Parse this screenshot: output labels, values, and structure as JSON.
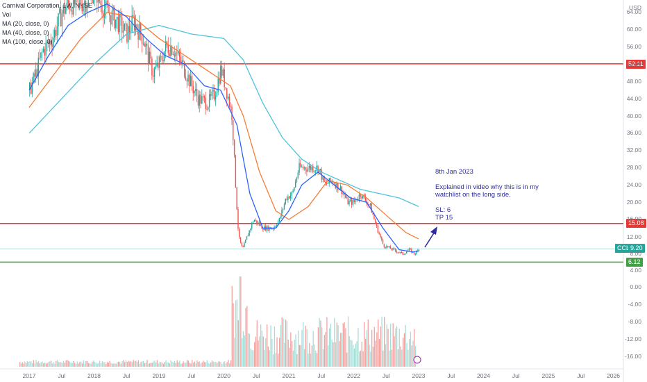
{
  "legend": {
    "title": "Carnival Corporation, 1W, NYSE",
    "vol": "Vol",
    "ma20": "MA (20, close, 0)",
    "ma40": "MA (40, close, 0)",
    "ma100": "MA (100, close, 0)"
  },
  "currency": "USD",
  "annotation": {
    "date": "8th Jan 2023",
    "line1": "Explained in video why this is in my",
    "line2": "watchlist on the long side.",
    "sl": "SL: 6",
    "tp": "TP 15"
  },
  "price_tags": {
    "resistance": "52.11",
    "target": "15.08",
    "current_symbol": "CCL",
    "current": "9.20",
    "support": "6.12"
  },
  "colors": {
    "up": "#26a69a",
    "down": "#ef5350",
    "ma20": "#2962ff",
    "ma40": "#f57c37",
    "ma100": "#4fc3dc",
    "resistance": "#e53935",
    "support": "#43a047",
    "annotation": "#2c2c9e"
  },
  "y_axis_labels": [
    "64.00",
    "60.00",
    "56.00",
    "52.00",
    "48.00",
    "44.00",
    "40.00",
    "36.00",
    "32.00",
    "28.00",
    "24.00",
    "20.00",
    "16.00",
    "12.00",
    "8.00",
    "4.00",
    "0.00",
    "-4.00",
    "-8.00",
    "-12.00",
    "-16.00"
  ],
  "x_axis_labels": [
    "2017",
    "Jul",
    "2018",
    "Jul",
    "2019",
    "Jul",
    "2020",
    "Jul",
    "2021",
    "Jul",
    "2022",
    "Jul",
    "2023",
    "Jul",
    "2024",
    "Jul",
    "2025",
    "Jul",
    "2026"
  ],
  "chart_data": {
    "type": "candlestick",
    "symbol": "CCL",
    "timeframe": "1W",
    "exchange": "NYSE",
    "price_range": [
      4,
      66
    ],
    "horizontal_levels": [
      {
        "name": "resistance",
        "value": 52.11
      },
      {
        "name": "target",
        "value": 15.08
      },
      {
        "name": "support",
        "value": 6.12
      }
    ],
    "close_series": [
      {
        "t": 2017.0,
        "c": 46
      },
      {
        "t": 2017.1,
        "c": 50
      },
      {
        "t": 2017.2,
        "c": 55
      },
      {
        "t": 2017.35,
        "c": 58
      },
      {
        "t": 2017.5,
        "c": 64
      },
      {
        "t": 2017.6,
        "c": 66
      },
      {
        "t": 2017.75,
        "c": 66
      },
      {
        "t": 2017.9,
        "c": 67
      },
      {
        "t": 2018.0,
        "c": 70
      },
      {
        "t": 2018.1,
        "c": 66
      },
      {
        "t": 2018.2,
        "c": 64
      },
      {
        "t": 2018.35,
        "c": 62
      },
      {
        "t": 2018.5,
        "c": 59
      },
      {
        "t": 2018.6,
        "c": 62
      },
      {
        "t": 2018.75,
        "c": 58
      },
      {
        "t": 2018.9,
        "c": 50
      },
      {
        "t": 2019.0,
        "c": 52
      },
      {
        "t": 2019.1,
        "c": 56
      },
      {
        "t": 2019.2,
        "c": 56
      },
      {
        "t": 2019.35,
        "c": 52
      },
      {
        "t": 2019.5,
        "c": 47
      },
      {
        "t": 2019.6,
        "c": 44
      },
      {
        "t": 2019.75,
        "c": 43
      },
      {
        "t": 2019.85,
        "c": 45
      },
      {
        "t": 2019.95,
        "c": 51
      },
      {
        "t": 2020.05,
        "c": 45
      },
      {
        "t": 2020.12,
        "c": 40
      },
      {
        "t": 2020.18,
        "c": 22
      },
      {
        "t": 2020.22,
        "c": 12
      },
      {
        "t": 2020.28,
        "c": 9
      },
      {
        "t": 2020.35,
        "c": 12
      },
      {
        "t": 2020.45,
        "c": 16
      },
      {
        "t": 2020.6,
        "c": 14
      },
      {
        "t": 2020.75,
        "c": 14
      },
      {
        "t": 2020.85,
        "c": 16
      },
      {
        "t": 2020.95,
        "c": 21
      },
      {
        "t": 2021.05,
        "c": 22
      },
      {
        "t": 2021.15,
        "c": 28
      },
      {
        "t": 2021.3,
        "c": 28
      },
      {
        "t": 2021.45,
        "c": 28
      },
      {
        "t": 2021.55,
        "c": 24
      },
      {
        "t": 2021.65,
        "c": 25
      },
      {
        "t": 2021.8,
        "c": 23
      },
      {
        "t": 2021.9,
        "c": 20
      },
      {
        "t": 2022.0,
        "c": 20
      },
      {
        "t": 2022.1,
        "c": 22
      },
      {
        "t": 2022.25,
        "c": 19
      },
      {
        "t": 2022.35,
        "c": 14
      },
      {
        "t": 2022.45,
        "c": 10
      },
      {
        "t": 2022.6,
        "c": 9
      },
      {
        "t": 2022.75,
        "c": 8
      },
      {
        "t": 2022.85,
        "c": 9
      },
      {
        "t": 2022.93,
        "c": 8
      },
      {
        "t": 2023.0,
        "c": 9.2
      }
    ],
    "ma20": [
      {
        "t": 2017.0,
        "v": 46
      },
      {
        "t": 2017.3,
        "v": 54
      },
      {
        "t": 2017.6,
        "v": 61
      },
      {
        "t": 2017.9,
        "v": 64
      },
      {
        "t": 2018.2,
        "v": 66
      },
      {
        "t": 2018.5,
        "v": 63
      },
      {
        "t": 2018.8,
        "v": 58
      },
      {
        "t": 2019.1,
        "v": 54
      },
      {
        "t": 2019.4,
        "v": 52
      },
      {
        "t": 2019.7,
        "v": 47
      },
      {
        "t": 2019.95,
        "v": 46
      },
      {
        "t": 2020.2,
        "v": 38
      },
      {
        "t": 2020.4,
        "v": 22
      },
      {
        "t": 2020.6,
        "v": 14
      },
      {
        "t": 2020.8,
        "v": 14
      },
      {
        "t": 2021.0,
        "v": 18
      },
      {
        "t": 2021.2,
        "v": 24
      },
      {
        "t": 2021.45,
        "v": 27
      },
      {
        "t": 2021.7,
        "v": 24
      },
      {
        "t": 2021.95,
        "v": 21
      },
      {
        "t": 2022.2,
        "v": 20
      },
      {
        "t": 2022.45,
        "v": 14
      },
      {
        "t": 2022.7,
        "v": 9
      },
      {
        "t": 2022.9,
        "v": 8.5
      },
      {
        "t": 2023.0,
        "v": 8.6
      }
    ],
    "ma40": [
      {
        "t": 2017.0,
        "v": 42
      },
      {
        "t": 2017.4,
        "v": 50
      },
      {
        "t": 2017.8,
        "v": 58
      },
      {
        "t": 2018.2,
        "v": 64
      },
      {
        "t": 2018.6,
        "v": 63
      },
      {
        "t": 2019.0,
        "v": 58
      },
      {
        "t": 2019.4,
        "v": 54
      },
      {
        "t": 2019.8,
        "v": 50
      },
      {
        "t": 2020.1,
        "v": 47
      },
      {
        "t": 2020.3,
        "v": 40
      },
      {
        "t": 2020.55,
        "v": 27
      },
      {
        "t": 2020.8,
        "v": 18
      },
      {
        "t": 2021.0,
        "v": 16
      },
      {
        "t": 2021.3,
        "v": 19
      },
      {
        "t": 2021.6,
        "v": 25
      },
      {
        "t": 2021.9,
        "v": 24
      },
      {
        "t": 2022.2,
        "v": 21
      },
      {
        "t": 2022.5,
        "v": 17
      },
      {
        "t": 2022.8,
        "v": 13
      },
      {
        "t": 2023.0,
        "v": 11.5
      }
    ],
    "ma100": [
      {
        "t": 2017.0,
        "v": 36
      },
      {
        "t": 2017.5,
        "v": 44
      },
      {
        "t": 2018.0,
        "v": 52
      },
      {
        "t": 2018.5,
        "v": 59
      },
      {
        "t": 2019.0,
        "v": 61
      },
      {
        "t": 2019.5,
        "v": 59
      },
      {
        "t": 2020.0,
        "v": 58
      },
      {
        "t": 2020.3,
        "v": 53
      },
      {
        "t": 2020.6,
        "v": 43
      },
      {
        "t": 2020.9,
        "v": 35
      },
      {
        "t": 2021.2,
        "v": 30
      },
      {
        "t": 2021.5,
        "v": 27
      },
      {
        "t": 2021.8,
        "v": 25
      },
      {
        "t": 2022.1,
        "v": 23
      },
      {
        "t": 2022.4,
        "v": 22
      },
      {
        "t": 2022.7,
        "v": 21
      },
      {
        "t": 2023.0,
        "v": 19
      }
    ],
    "volume": {
      "baseline_year_ranges": [
        {
          "from": 2016.8,
          "to": 2020.1,
          "level": "low"
        },
        {
          "from": 2020.1,
          "to": 2022.9,
          "level": "high"
        }
      ],
      "spike_year": 2020.25
    }
  }
}
